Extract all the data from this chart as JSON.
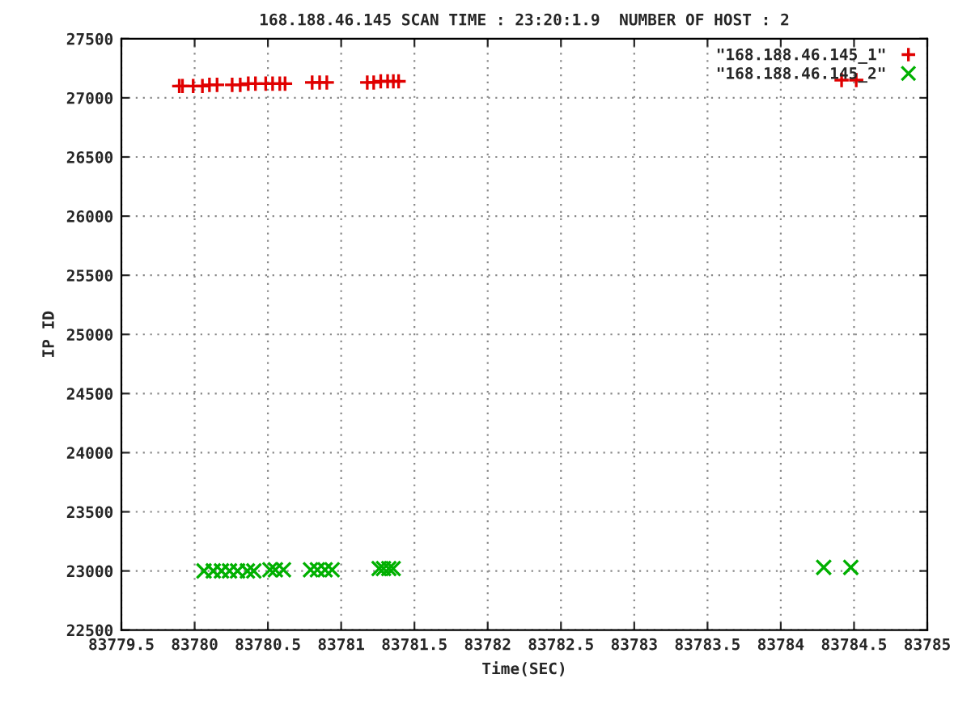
{
  "chart_data": {
    "type": "scatter",
    "title": "168.188.46.145 SCAN TIME : 23:20:1.9  NUMBER OF HOST : 2",
    "xlabel": "Time(SEC)",
    "ylabel": "IP ID",
    "series": [
      {
        "name": "\"168.188.46.145_1\"",
        "color": "#e00000",
        "marker": "plus",
        "x": [
          83779.895,
          83779.917,
          83779.99,
          83780.053,
          83780.101,
          83780.153,
          83780.256,
          83780.311,
          83780.366,
          83780.415,
          83780.485,
          83780.532,
          83780.581,
          83780.617,
          83780.802,
          83780.853,
          83780.902,
          83781.178,
          83781.222,
          83781.27,
          83781.317,
          83781.356,
          83781.392,
          83784.415,
          83784.515
        ],
        "values": [
          27100,
          27100,
          27100,
          27100,
          27110,
          27110,
          27110,
          27110,
          27120,
          27120,
          27120,
          27120,
          27120,
          27120,
          27130,
          27130,
          27130,
          27130,
          27130,
          27140,
          27140,
          27140,
          27140,
          27150,
          27150
        ]
      },
      {
        "name": "\"168.188.46.145_2\"",
        "color": "#00b000",
        "marker": "cross",
        "x": [
          83780.064,
          83780.127,
          83780.183,
          83780.238,
          83780.293,
          83780.36,
          83780.404,
          83780.514,
          83780.551,
          83780.606,
          83780.791,
          83780.838,
          83780.89,
          83780.938,
          83781.259,
          83781.289,
          83781.325,
          83781.355,
          83784.293,
          83784.478
        ],
        "values": [
          23000,
          23000,
          23000,
          23000,
          23000,
          23000,
          23000,
          23010,
          23010,
          23010,
          23010,
          23010,
          23010,
          23010,
          23020,
          23020,
          23020,
          23020,
          23030,
          23030
        ]
      }
    ],
    "xlim": [
      83779.5,
      83785
    ],
    "xticks": [
      83779.5,
      83780,
      83780.5,
      83781,
      83781.5,
      83782,
      83782.5,
      83783,
      83783.5,
      83784,
      83784.5,
      83785
    ],
    "ylim": [
      22500,
      27500
    ],
    "yticks": [
      22500,
      23000,
      23500,
      24000,
      24500,
      25000,
      25500,
      26000,
      26500,
      27000,
      27500
    ],
    "grid": true,
    "legend": "top right"
  }
}
